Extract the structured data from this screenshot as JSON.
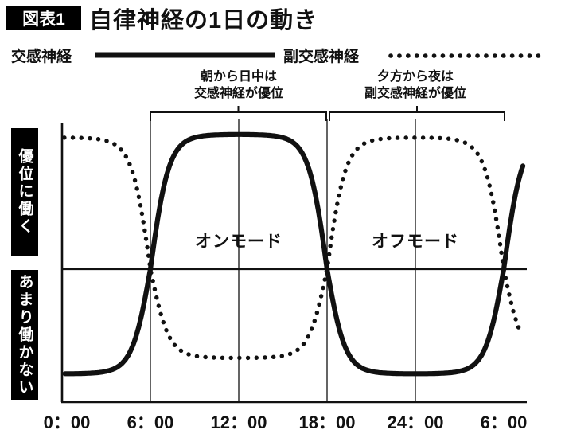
{
  "header": {
    "badge": "図表1",
    "title": "自律神経の1日の動き"
  },
  "legend": [
    {
      "label": "交感神経",
      "style": "solid"
    },
    {
      "label": "副交感神経",
      "style": "dotted"
    }
  ],
  "annotations": [
    {
      "lines": [
        "朝から日中は",
        "交感神経が優位"
      ],
      "span_hours": [
        6,
        18
      ]
    },
    {
      "lines": [
        "夕方から夜は",
        "副交感神経が優位"
      ],
      "span_hours": [
        18,
        30
      ]
    }
  ],
  "y_axis_labels": [
    {
      "text": "優位に働く"
    },
    {
      "text": "あまり働かない"
    }
  ],
  "mode_labels": [
    {
      "text": "オンモード",
      "hour": 12
    },
    {
      "text": "オフモード",
      "hour": 24
    }
  ],
  "x_ticks": [
    {
      "hour": 0,
      "label": "0：00"
    },
    {
      "hour": 6,
      "label": "6：00"
    },
    {
      "hour": 12,
      "label": "12：00"
    },
    {
      "hour": 18,
      "label": "18：00"
    },
    {
      "hour": 24,
      "label": "24：00"
    },
    {
      "hour": 30,
      "label": "6：00"
    }
  ],
  "colors": {
    "ink": "#111111",
    "background": "#ffffff"
  },
  "chart_data": {
    "type": "line",
    "title": "自律神経の1日の動き",
    "x_unit": "hour of day (0:00 through 6:00 next day)",
    "x_range_hours": [
      0,
      31
    ],
    "ylim": [
      -1,
      1
    ],
    "grid": "vertical gridlines only",
    "gridlines_hours": [
      6,
      12,
      18,
      24
    ],
    "legend_position": "top",
    "waveform": {
      "shape": "smoothed square wave (tanh of sine)",
      "period_hours": 24,
      "steepness": 3,
      "sympathetic_rises_at_hour": 6,
      "sympathetic_falls_at_hour": 18
    },
    "categories_hours": [
      0,
      1,
      2,
      3,
      4,
      5,
      6,
      7,
      8,
      9,
      10,
      11,
      12,
      13,
      14,
      15,
      16,
      17,
      18,
      19,
      20,
      21,
      22,
      23,
      24,
      25,
      26,
      27,
      28,
      29,
      30
    ],
    "series": [
      {
        "name": "交感神経",
        "style": "solid",
        "sign": 1,
        "values_hourly": [
          -1,
          -0.99,
          -0.99,
          -0.97,
          -0.9,
          -0.65,
          0,
          0.65,
          0.9,
          0.97,
          0.99,
          0.99,
          1,
          0.99,
          0.99,
          0.97,
          0.9,
          0.65,
          0,
          -0.65,
          -0.9,
          -0.97,
          -0.99,
          -0.99,
          -1,
          -0.99,
          -0.99,
          -0.97,
          -0.9,
          -0.65,
          0
        ]
      },
      {
        "name": "副交感神経",
        "style": "dotted",
        "sign": -1,
        "values_hourly": [
          1,
          0.99,
          0.99,
          0.97,
          0.9,
          0.65,
          0,
          -0.65,
          -0.9,
          -0.97,
          -0.99,
          -0.99,
          -1,
          -0.99,
          -0.99,
          -0.97,
          -0.9,
          -0.65,
          0,
          0.65,
          0.9,
          0.97,
          0.99,
          0.99,
          1,
          0.99,
          0.99,
          0.97,
          0.9,
          0.65,
          0
        ]
      }
    ]
  }
}
